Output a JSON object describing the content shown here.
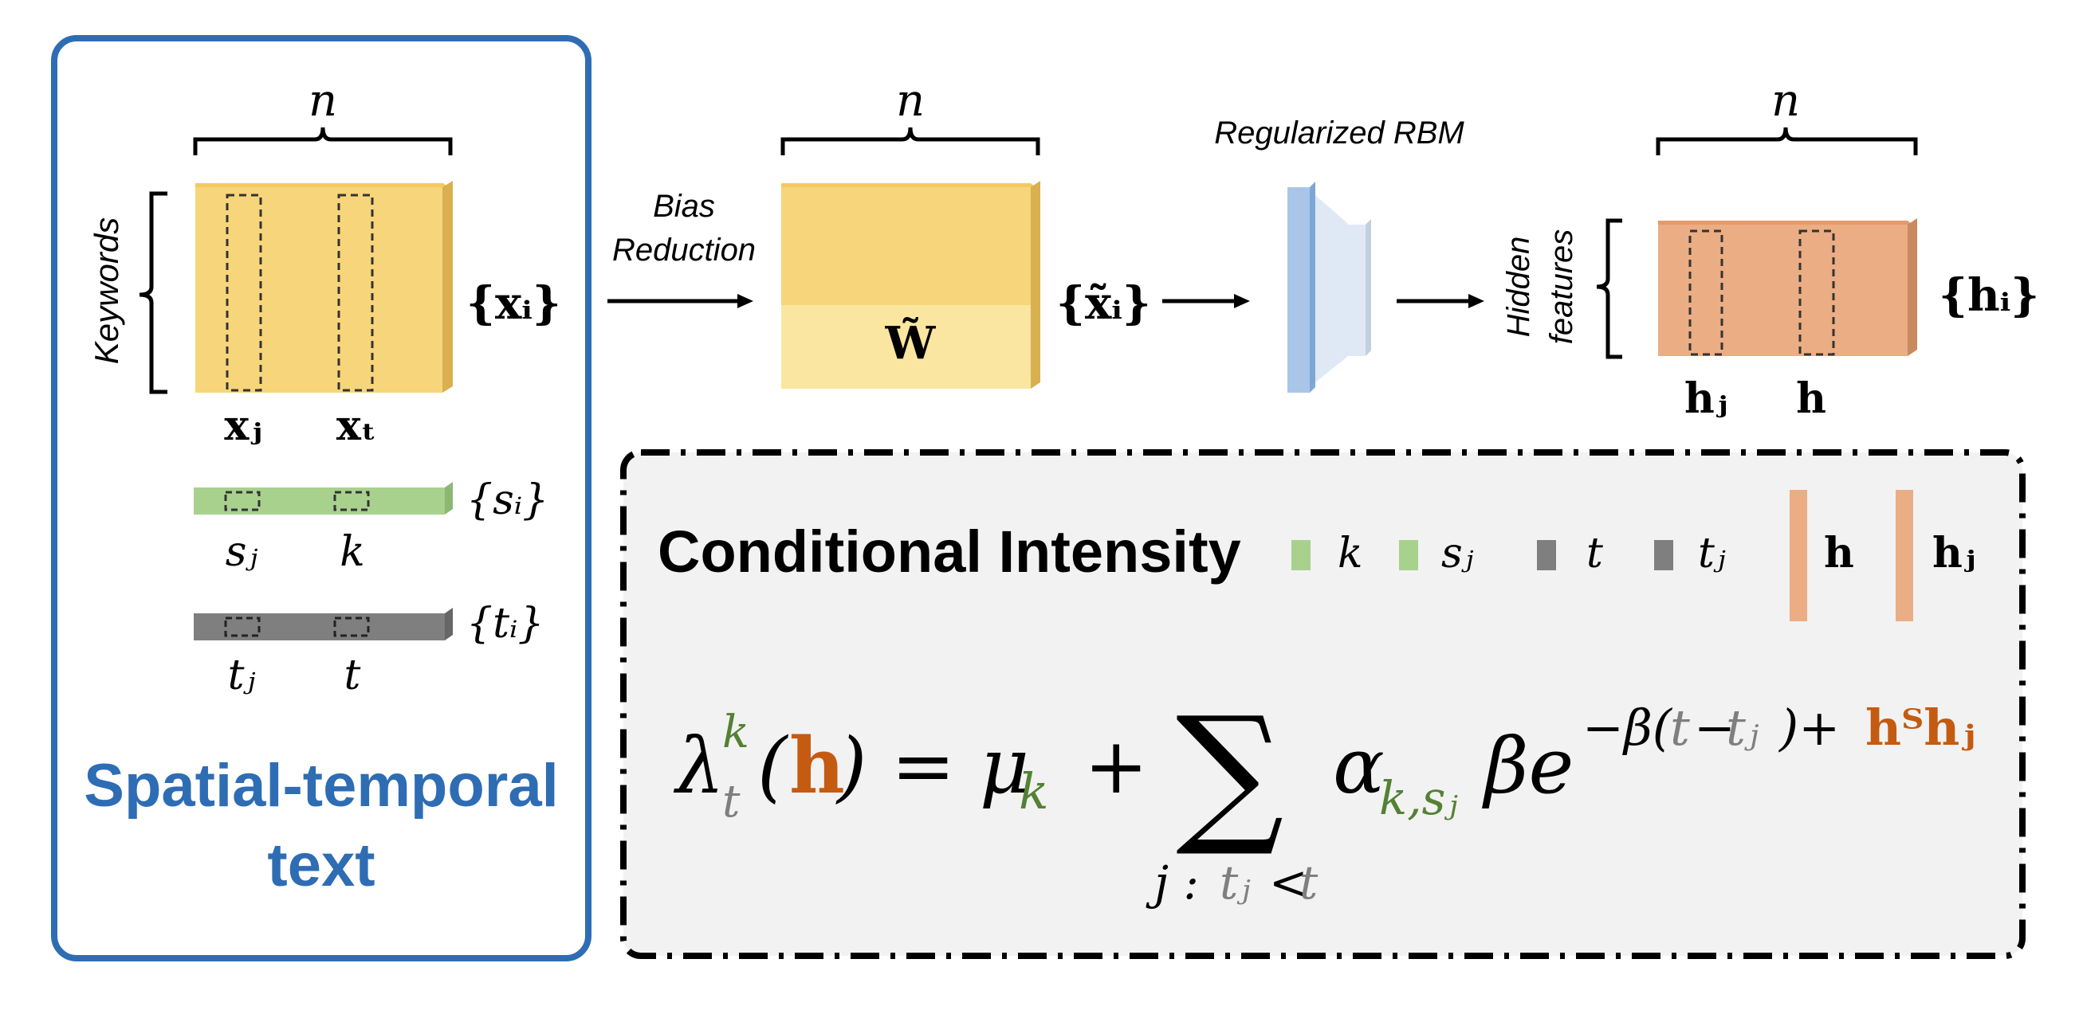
{
  "colors": {
    "panel_border": "#2e6db4",
    "yellow": "#f7d57a",
    "yellow_light": "#fae6a0",
    "green": "#a9d18e",
    "gray": "#7f7f7f",
    "orange": "#ebad84",
    "blue_rbm": "#a9c6e8",
    "term_green": "#538135",
    "term_gray": "#7f7f7f",
    "term_brown": "#c55a11",
    "formula_bg": "#f2f2f2"
  },
  "left_panel": {
    "title_line1": "Spatial-temporal",
    "title_line2": "text",
    "n_label": "n",
    "keywords_label": "Keywords",
    "x_set": "{xᵢ}",
    "x_col1": "xⱼ",
    "x_col2": "xₜ",
    "s_set": "{sᵢ}",
    "s_col1": "sⱼ",
    "s_col2": "k",
    "t_set": "{tᵢ}",
    "t_col1": "tⱼ",
    "t_col2": "t"
  },
  "middle": {
    "arrow1_line1": "Bias",
    "arrow1_line2": "Reduction",
    "n_label": "n",
    "w_label": "W̃",
    "x_tilde_set": "{x̃ᵢ}",
    "rbm_label": "Regularized RBM",
    "hidden_line1": "Hidden",
    "hidden_line2": "features"
  },
  "right": {
    "n_label": "n",
    "h_set": "{hᵢ}",
    "h_col1": "hⱼ",
    "h_col2": "h"
  },
  "formula_box": {
    "title": "Conditional Intensity",
    "legend_k": "k",
    "legend_sj": "sⱼ",
    "legend_t": "t",
    "legend_tj": "tⱼ",
    "legend_h": "h",
    "legend_hj": "hⱼ",
    "lambda": "λ",
    "lambda_sup": "k",
    "lambda_sub": "t",
    "open_paren": "(",
    "h": "h",
    "close_paren_eq": ") = μ",
    "mu_sub": "k",
    "plus": "+",
    "sigma": "∑",
    "sum_j": "j :",
    "sum_tj": "tⱼ",
    "sum_lt": "<",
    "sum_t": "t",
    "alpha": "α",
    "alpha_sub": "k,sⱼ",
    "beta_e": "βe",
    "exp_neg_beta": "−β(",
    "exp_t": "t",
    "exp_minus": "−",
    "exp_tj": "tⱼ",
    "exp_close_plus": ")+",
    "exp_hT": "hᵀhⱼ"
  }
}
